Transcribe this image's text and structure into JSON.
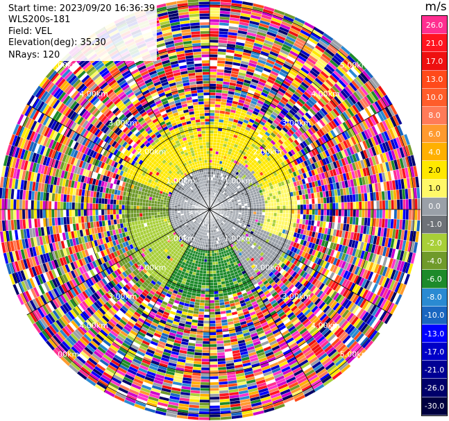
{
  "info": {
    "start_time": "Start time: 2023/09/20 16:36:39",
    "instrument": "WLS200s-181",
    "field": "Field: VEL",
    "elevation": "Elevation(deg): 35.30",
    "nrays": "NRays: 120"
  },
  "colorbar": {
    "unit": "m/s",
    "items": [
      {
        "label": "26.0",
        "color": "#ff2e90"
      },
      {
        "label": "21.0",
        "color": "#ff1420"
      },
      {
        "label": "17.0",
        "color": "#ee1010"
      },
      {
        "label": "13.0",
        "color": "#ff4a1a"
      },
      {
        "label": "10.0",
        "color": "#ff5d2a"
      },
      {
        "label": "8.0",
        "color": "#ff7b58"
      },
      {
        "label": "6.0",
        "color": "#ff9a2e"
      },
      {
        "label": "4.0",
        "color": "#ffb000"
      },
      {
        "label": "2.0",
        "color": "#ffe800"
      },
      {
        "label": "1.0",
        "color": "#fff868"
      },
      {
        "label": "0.0",
        "color": "#9aa0a8"
      },
      {
        "label": "-1.0",
        "color": "#6e7278"
      },
      {
        "label": "-2.0",
        "color": "#a8cf38"
      },
      {
        "label": "-4.0",
        "color": "#6f9a2a"
      },
      {
        "label": "-6.0",
        "color": "#1d8a2a"
      },
      {
        "label": "-8.0",
        "color": "#2a8ad2"
      },
      {
        "label": "-10.0",
        "color": "#1a66c0"
      },
      {
        "label": "-13.0",
        "color": "#0000ff"
      },
      {
        "label": "-17.0",
        "color": "#0000c8"
      },
      {
        "label": "-21.0",
        "color": "#000094"
      },
      {
        "label": "-26.0",
        "color": "#00006a"
      },
      {
        "label": "-30.0",
        "color": "#000040"
      }
    ]
  },
  "range_labels": [
    "1.00km",
    "2.00km",
    "3.00km",
    "4.00km",
    "5.00km"
  ],
  "plot_colors": {
    "ring": "#000000",
    "label": "#ffffff",
    "noise_palette": [
      "#ff2e90",
      "#ff1420",
      "#ee1010",
      "#ff4a1a",
      "#ff7b58",
      "#ff9a2e",
      "#ffb000",
      "#ffe800",
      "#fff868",
      "#9aa0a8",
      "#a8cf38",
      "#6f9a2a",
      "#1d8a2a",
      "#2a8ad2",
      "#1a66c0",
      "#0000ff",
      "#0000c8",
      "#000094",
      "#00006a",
      "#ffffff",
      "#ff33cc",
      "#cc00cc"
    ]
  }
}
